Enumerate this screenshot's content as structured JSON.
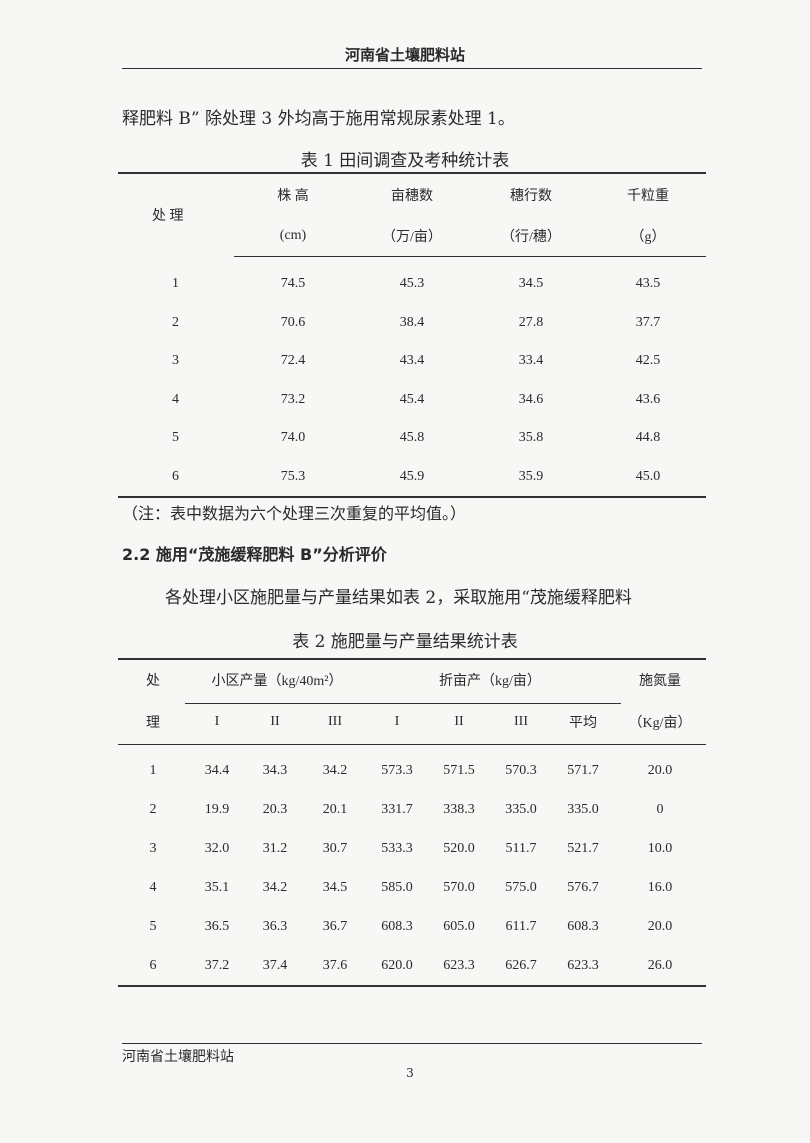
{
  "header": "河南省土壤肥料站",
  "intro_line": "释肥料 B” 除处理 3 外均高于施用常规尿素处理 1。",
  "table1": {
    "caption": "表 1   田间调查及考种统计表",
    "headers": [
      [
        "处  理",
        ""
      ],
      [
        "株  高",
        "(cm)"
      ],
      [
        "亩穗数",
        "（万/亩）"
      ],
      [
        "穗行数",
        "（行/穗）"
      ],
      [
        "千粒重",
        "（g）"
      ]
    ],
    "rows": [
      [
        "1",
        "74.5",
        "45.3",
        "34.5",
        "43.5"
      ],
      [
        "2",
        "70.6",
        "38.4",
        "27.8",
        "37.7"
      ],
      [
        "3",
        "72.4",
        "43.4",
        "33.4",
        "42.5"
      ],
      [
        "4",
        "73.2",
        "45.4",
        "34.6",
        "43.6"
      ],
      [
        "5",
        "74.0",
        "45.8",
        "35.8",
        "44.8"
      ],
      [
        "6",
        "75.3",
        "45.9",
        "35.9",
        "45.0"
      ]
    ],
    "note": "（注：表中数据为六个处理三次重复的平均值。）"
  },
  "section_title": "2.2 施用“茂施缓释肥料 B”分析评价",
  "paragraph": "各处理小区施肥量与产量结果如表 2，采取施用“茂施缓释肥料",
  "table2": {
    "caption": "表 2   施肥量与产量结果统计表",
    "group_headers": [
      "处",
      "小区产量（kg/40m²）",
      "折亩产（kg/亩）",
      "施氮量"
    ],
    "sub_headers": [
      "理",
      "I",
      "II",
      "III",
      "I",
      "II",
      "III",
      "平均",
      "（Kg/亩）"
    ],
    "rows": [
      [
        "1",
        "34.4",
        "34.3",
        "34.2",
        "573.3",
        "571.5",
        "570.3",
        "571.7",
        "20.0"
      ],
      [
        "2",
        "19.9",
        "20.3",
        "20.1",
        "331.7",
        "338.3",
        "335.0",
        "335.0",
        "0"
      ],
      [
        "3",
        "32.0",
        "31.2",
        "30.7",
        "533.3",
        "520.0",
        "511.7",
        "521.7",
        "10.0"
      ],
      [
        "4",
        "35.1",
        "34.2",
        "34.5",
        "585.0",
        "570.0",
        "575.0",
        "576.7",
        "16.0"
      ],
      [
        "5",
        "36.5",
        "36.3",
        "36.7",
        "608.3",
        "605.0",
        "611.7",
        "608.3",
        "20.0"
      ],
      [
        "6",
        "37.2",
        "37.4",
        "37.6",
        "620.0",
        "623.3",
        "626.7",
        "623.3",
        "26.0"
      ]
    ]
  },
  "footer": {
    "org": "河南省土壤肥料站",
    "page": "3"
  }
}
